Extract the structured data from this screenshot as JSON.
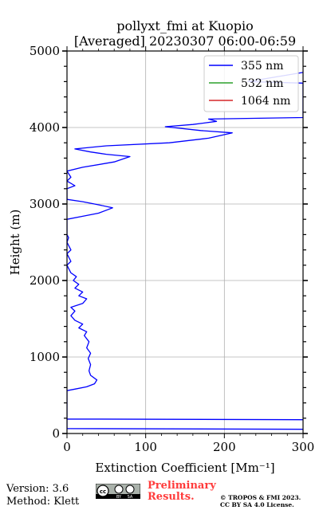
{
  "chart_data": {
    "type": "line",
    "title": "pollyxt_fmi at Kuopio",
    "subtitle": "[Averaged] 20230307 06:00-06:59",
    "xlabel": "Extinction Coefficient [Mm⁻¹]",
    "ylabel": "Height (m)",
    "xlim": [
      0,
      300
    ],
    "ylim": [
      0,
      5000
    ],
    "xticks": [
      "0",
      "100",
      "200",
      "300"
    ],
    "yticks": [
      "0",
      "1000",
      "2000",
      "3000",
      "4000",
      "5000"
    ],
    "grid": true,
    "legend_position": "top-right",
    "series": [
      {
        "name": "355 nm",
        "color": "#0000ff",
        "points": [
          [
            300,
            55
          ],
          [
            0,
            65
          ],
          [
            0,
            190
          ],
          [
            300,
            180
          ],
          [
            0,
            190
          ],
          [
            0,
            560
          ],
          [
            10,
            580
          ],
          [
            25,
            610
          ],
          [
            35,
            650
          ],
          [
            38,
            700
          ],
          [
            30,
            760
          ],
          [
            28,
            820
          ],
          [
            30,
            900
          ],
          [
            27,
            980
          ],
          [
            30,
            1050
          ],
          [
            25,
            1120
          ],
          [
            28,
            1200
          ],
          [
            22,
            1280
          ],
          [
            25,
            1330
          ],
          [
            15,
            1380
          ],
          [
            20,
            1430
          ],
          [
            10,
            1480
          ],
          [
            5,
            1540
          ],
          [
            10,
            1600
          ],
          [
            5,
            1650
          ],
          [
            20,
            1700
          ],
          [
            25,
            1760
          ],
          [
            15,
            1800
          ],
          [
            20,
            1850
          ],
          [
            10,
            1900
          ],
          [
            15,
            1950
          ],
          [
            8,
            2000
          ],
          [
            12,
            2050
          ],
          [
            5,
            2100
          ],
          [
            0,
            2200
          ],
          [
            5,
            2250
          ],
          [
            0,
            2350
          ],
          [
            5,
            2400
          ],
          [
            0,
            2500
          ],
          [
            2,
            2560
          ],
          [
            0,
            2600
          ],
          [
            0,
            2800
          ],
          [
            20,
            2840
          ],
          [
            40,
            2880
          ],
          [
            58,
            2950
          ],
          [
            40,
            2990
          ],
          [
            20,
            3030
          ],
          [
            0,
            3060
          ],
          [
            0,
            3200
          ],
          [
            10,
            3240
          ],
          [
            0,
            3300
          ],
          [
            5,
            3350
          ],
          [
            0,
            3430
          ],
          [
            20,
            3480
          ],
          [
            60,
            3550
          ],
          [
            80,
            3620
          ],
          [
            50,
            3650
          ],
          [
            30,
            3680
          ],
          [
            10,
            3720
          ],
          [
            50,
            3760
          ],
          [
            130,
            3800
          ],
          [
            180,
            3860
          ],
          [
            210,
            3930
          ],
          [
            170,
            3960
          ],
          [
            125,
            4010
          ],
          [
            160,
            4040
          ],
          [
            190,
            4080
          ],
          [
            180,
            4110
          ],
          [
            300,
            4130
          ],
          [
            300,
            4580
          ],
          [
            230,
            4600
          ],
          [
            300,
            4720
          ]
        ]
      },
      {
        "name": "532 nm",
        "color": "#2ca02c",
        "points": []
      },
      {
        "name": "1064 nm",
        "color": "#d62728",
        "points": []
      }
    ]
  },
  "footer": {
    "version": "Version: 3.6",
    "method": "Method: Klett",
    "preliminary_line1": "Preliminary",
    "preliminary_line2": "Results.",
    "copyright_line1": "© TROPOS & FMI 2023.",
    "copyright_line2": "CC BY SA 4.0 License."
  }
}
